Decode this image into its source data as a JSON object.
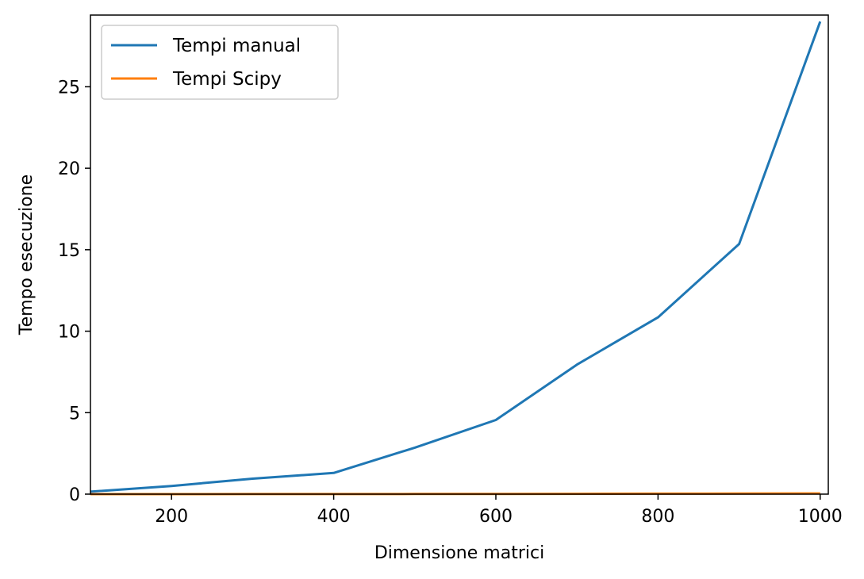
{
  "chart_data": {
    "type": "line",
    "title": "",
    "xlabel": "Dimensione matrici",
    "ylabel": "Tempo esecuzione",
    "xlim": [
      100,
      1010
    ],
    "ylim": [
      0,
      29.4
    ],
    "xticks": [
      200,
      400,
      600,
      800,
      1000
    ],
    "yticks": [
      0,
      5,
      10,
      15,
      20,
      25
    ],
    "grid": false,
    "legend_position": "top-left",
    "series": [
      {
        "name": "Tempi manual",
        "color": "#1f77b4",
        "x": [
          100,
          200,
          300,
          400,
          500,
          600,
          700,
          800,
          900,
          1000
        ],
        "values": [
          0.15,
          0.5,
          0.95,
          1.3,
          2.85,
          4.55,
          7.95,
          10.85,
          15.35,
          29.0
        ]
      },
      {
        "name": "Tempi Scipy",
        "color": "#ff7f0e",
        "x": [
          100,
          200,
          300,
          400,
          500,
          600,
          700,
          800,
          900,
          1000
        ],
        "values": [
          0.001,
          0.002,
          0.004,
          0.007,
          0.01,
          0.015,
          0.02,
          0.028,
          0.035,
          0.045
        ]
      }
    ]
  }
}
